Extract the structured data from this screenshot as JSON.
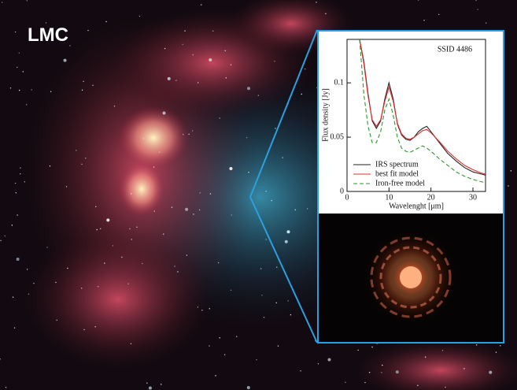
{
  "image_label": "LMC",
  "chart_data": {
    "type": "line",
    "annotation": "SSID 4486",
    "x_label": "Wavelenght [μm]",
    "y_label": "Flux density [Jy]",
    "xlim": [
      0,
      33
    ],
    "ylim": [
      0,
      0.14
    ],
    "xticks": [
      0,
      10,
      20,
      30
    ],
    "yticks": [
      0,
      0.05,
      0.1
    ],
    "legend": "lower left",
    "x": [
      3,
      4,
      5,
      6,
      7,
      8,
      9,
      10,
      11,
      12,
      13,
      14,
      15,
      16,
      17,
      18,
      19,
      20,
      22,
      24,
      26,
      28,
      30,
      32,
      33
    ],
    "series": [
      {
        "name": "IRS spectrum",
        "color": "#222222",
        "dash": false,
        "values": [
          0.14,
          0.12,
          0.09,
          0.065,
          0.058,
          0.065,
          0.085,
          0.1,
          0.085,
          0.062,
          0.052,
          0.048,
          0.047,
          0.05,
          0.055,
          0.058,
          0.06,
          0.055,
          0.045,
          0.035,
          0.028,
          0.022,
          0.018,
          0.016,
          0.015
        ]
      },
      {
        "name": "best fit model",
        "color": "#e03030",
        "dash": false,
        "values": [
          0.14,
          0.118,
          0.088,
          0.066,
          0.06,
          0.066,
          0.083,
          0.096,
          0.083,
          0.063,
          0.053,
          0.049,
          0.048,
          0.05,
          0.053,
          0.056,
          0.057,
          0.054,
          0.046,
          0.037,
          0.03,
          0.024,
          0.02,
          0.017,
          0.016
        ]
      },
      {
        "name": "Iron-free model",
        "color": "#2a9a2a",
        "dash": true,
        "values": [
          0.14,
          0.09,
          0.06,
          0.045,
          0.045,
          0.055,
          0.075,
          0.085,
          0.07,
          0.05,
          0.04,
          0.037,
          0.036,
          0.038,
          0.04,
          0.042,
          0.04,
          0.037,
          0.03,
          0.024,
          0.018,
          0.014,
          0.011,
          0.009,
          0.008
        ]
      }
    ]
  }
}
